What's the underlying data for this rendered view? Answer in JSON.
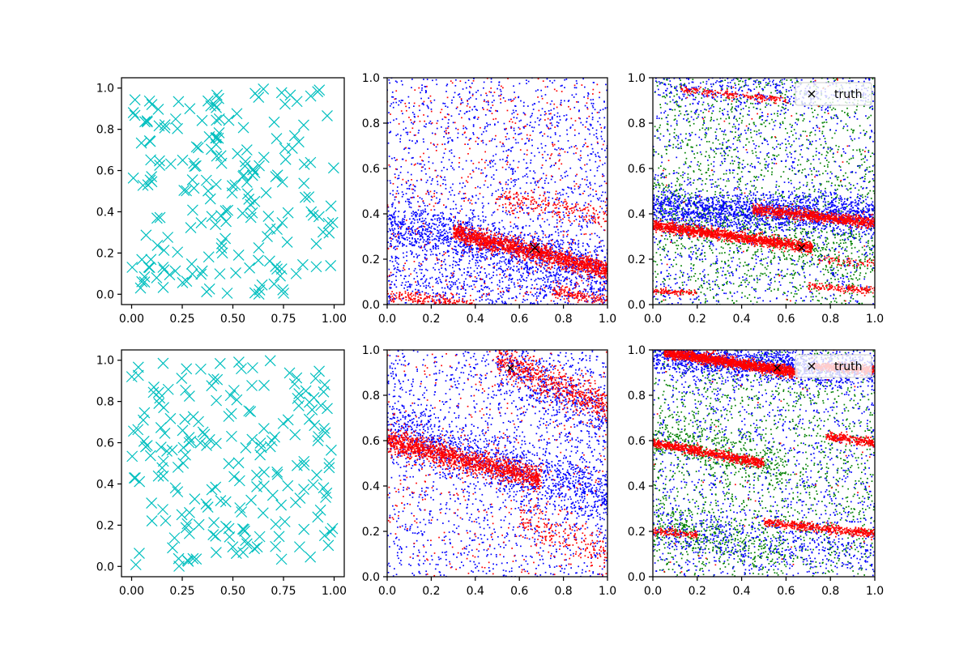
{
  "figure": {
    "background": "#ffffff"
  },
  "colors": {
    "cyan": "#00bfbf",
    "red": "#ff0000",
    "blue": "#0000ff",
    "green": "#008000",
    "black": "#000000"
  },
  "chart_data": [
    {
      "id": "r1c1",
      "type": "scatter",
      "marker": "x-large",
      "color": "#00bfbf",
      "xlim": [
        -0.05,
        1.05
      ],
      "ylim": [
        -0.05,
        1.05
      ],
      "xticks": [
        "0.00",
        "0.25",
        "0.50",
        "0.75",
        "1.00"
      ],
      "yticks": [
        "0.0",
        "0.2",
        "0.4",
        "0.6",
        "0.8",
        "1.0"
      ],
      "xtick_values": [
        0,
        0.25,
        0.5,
        0.75,
        1.0
      ],
      "ytick_values": [
        0,
        0.2,
        0.4,
        0.6,
        0.8,
        1.0
      ],
      "n_points": 200,
      "seed": 11,
      "distribution": "uniform"
    },
    {
      "id": "r1c2",
      "type": "scatter",
      "marker": "dot",
      "xlim": [
        0,
        1
      ],
      "ylim": [
        0,
        1
      ],
      "xticks": [
        "0.0",
        "0.2",
        "0.4",
        "0.6",
        "0.8",
        "1.0"
      ],
      "yticks": [
        "0.0",
        "0.2",
        "0.4",
        "0.6",
        "0.8",
        "1.0"
      ],
      "xtick_values": [
        0,
        0.2,
        0.4,
        0.6,
        0.8,
        1.0
      ],
      "ytick_values": [
        0,
        0.2,
        0.4,
        0.6,
        0.8,
        1.0
      ],
      "truth": {
        "x": 0.67,
        "y": 0.25,
        "size": "large"
      },
      "series": [
        {
          "color": "#0000ff",
          "seed": 21,
          "uniform": 1600,
          "bands": [
            {
              "x0": 0,
              "y0": 0.36,
              "x1": 1,
              "y1": 0.15,
              "n": 1300,
              "spread": 0.06
            },
            {
              "x0": 0,
              "y0": 0.12,
              "x1": 1,
              "y1": 0.04,
              "n": 400,
              "spread": 0.06
            }
          ]
        },
        {
          "color": "#ff0000",
          "seed": 22,
          "uniform": 500,
          "bands": [
            {
              "x0": 0.3,
              "y0": 0.32,
              "x1": 1,
              "y1": 0.15,
              "n": 1600,
              "spread": 0.02
            },
            {
              "x0": 0,
              "y0": 0.04,
              "x1": 0.4,
              "y1": 0.0,
              "n": 200,
              "spread": 0.015
            },
            {
              "x0": 0.75,
              "y0": 0.06,
              "x1": 1,
              "y1": 0.02,
              "n": 150,
              "spread": 0.015
            },
            {
              "x0": 0.5,
              "y0": 0.47,
              "x1": 1,
              "y1": 0.38,
              "n": 200,
              "spread": 0.025
            }
          ]
        }
      ]
    },
    {
      "id": "r1c3",
      "type": "scatter",
      "marker": "dot",
      "xlim": [
        0,
        1
      ],
      "ylim": [
        0,
        1
      ],
      "xticks": [
        "0.0",
        "0.2",
        "0.4",
        "0.6",
        "0.8",
        "1.0"
      ],
      "yticks": [
        "0.0",
        "0.2",
        "0.4",
        "0.6",
        "0.8",
        "1.0"
      ],
      "xtick_values": [
        0,
        0.2,
        0.4,
        0.6,
        0.8,
        1.0
      ],
      "ytick_values": [
        0,
        0.2,
        0.4,
        0.6,
        0.8,
        1.0
      ],
      "truth": {
        "x": 0.67,
        "y": 0.25,
        "size": "small"
      },
      "legend": {
        "label": "truth",
        "placement": "upper right"
      },
      "series": [
        {
          "color": "#008000",
          "seed": 31,
          "uniform": 1700,
          "bands": [
            {
              "x0": 0,
              "y0": 0.42,
              "x1": 1,
              "y1": 0.2,
              "n": 500,
              "spread": 0.07
            }
          ]
        },
        {
          "color": "#0000ff",
          "seed": 32,
          "uniform": 1200,
          "bands": [
            {
              "x0": 0,
              "y0": 0.42,
              "x1": 1,
              "y1": 0.4,
              "n": 1600,
              "spread": 0.04
            },
            {
              "x0": 0,
              "y0": 0.96,
              "x1": 1,
              "y1": 0.92,
              "n": 300,
              "spread": 0.04
            }
          ]
        },
        {
          "color": "#ff0000",
          "seed": 33,
          "uniform": 60,
          "bands": [
            {
              "x0": 0,
              "y0": 0.35,
              "x1": 0.72,
              "y1": 0.25,
              "n": 1400,
              "spread": 0.012
            },
            {
              "x0": 0.45,
              "y0": 0.42,
              "x1": 1,
              "y1": 0.36,
              "n": 900,
              "spread": 0.012
            },
            {
              "x0": 0.12,
              "y0": 0.95,
              "x1": 0.6,
              "y1": 0.9,
              "n": 200,
              "spread": 0.008
            },
            {
              "x0": 0,
              "y0": 0.06,
              "x1": 0.2,
              "y1": 0.05,
              "n": 100,
              "spread": 0.006
            },
            {
              "x0": 0.7,
              "y0": 0.08,
              "x1": 1,
              "y1": 0.06,
              "n": 150,
              "spread": 0.008
            },
            {
              "x0": 0.75,
              "y0": 0.2,
              "x1": 1,
              "y1": 0.18,
              "n": 60,
              "spread": 0.01
            }
          ]
        }
      ]
    },
    {
      "id": "r2c1",
      "type": "scatter",
      "marker": "x-large",
      "color": "#00bfbf",
      "xlim": [
        -0.05,
        1.05
      ],
      "ylim": [
        -0.05,
        1.05
      ],
      "xticks": [
        "0.00",
        "0.25",
        "0.50",
        "0.75",
        "1.00"
      ],
      "yticks": [
        "0.0",
        "0.2",
        "0.4",
        "0.6",
        "0.8",
        "1.0"
      ],
      "xtick_values": [
        0,
        0.25,
        0.5,
        0.75,
        1.0
      ],
      "ytick_values": [
        0,
        0.2,
        0.4,
        0.6,
        0.8,
        1.0
      ],
      "n_points": 200,
      "seed": 41,
      "distribution": "uniform"
    },
    {
      "id": "r2c2",
      "type": "scatter",
      "marker": "dot",
      "xlim": [
        0,
        1
      ],
      "ylim": [
        0,
        1
      ],
      "xticks": [
        "0.0",
        "0.2",
        "0.4",
        "0.6",
        "0.8",
        "1.0"
      ],
      "yticks": [
        "0.0",
        "0.2",
        "0.4",
        "0.6",
        "0.8",
        "1.0"
      ],
      "xtick_values": [
        0,
        0.2,
        0.4,
        0.6,
        0.8,
        1.0
      ],
      "ytick_values": [
        0,
        0.2,
        0.4,
        0.6,
        0.8,
        1.0
      ],
      "truth": {
        "x": 0.56,
        "y": 0.92,
        "size": "small"
      },
      "series": [
        {
          "color": "#0000ff",
          "seed": 51,
          "uniform": 1500,
          "bands": [
            {
              "x0": 0,
              "y0": 0.65,
              "x1": 1,
              "y1": 0.35,
              "n": 1200,
              "spread": 0.07
            },
            {
              "x0": 0.5,
              "y0": 0.95,
              "x1": 1,
              "y1": 0.7,
              "n": 500,
              "spread": 0.07
            }
          ]
        },
        {
          "color": "#ff0000",
          "seed": 52,
          "uniform": 400,
          "bands": [
            {
              "x0": 0,
              "y0": 0.6,
              "x1": 0.7,
              "y1": 0.43,
              "n": 1500,
              "spread": 0.025
            },
            {
              "x0": 0.5,
              "y0": 0.96,
              "x1": 1,
              "y1": 0.75,
              "n": 600,
              "spread": 0.04
            },
            {
              "x0": 0.6,
              "y0": 0.25,
              "x1": 1,
              "y1": 0.1,
              "n": 200,
              "spread": 0.05
            }
          ]
        }
      ]
    },
    {
      "id": "r2c3",
      "type": "scatter",
      "marker": "dot",
      "xlim": [
        0,
        1
      ],
      "ylim": [
        0,
        1
      ],
      "xticks": [
        "0.0",
        "0.2",
        "0.4",
        "0.6",
        "0.8",
        "1.0"
      ],
      "yticks": [
        "0.0",
        "0.2",
        "0.4",
        "0.6",
        "0.8",
        "1.0"
      ],
      "xtick_values": [
        0,
        0.2,
        0.4,
        0.6,
        0.8,
        1.0
      ],
      "ytick_values": [
        0,
        0.2,
        0.4,
        0.6,
        0.8,
        1.0
      ],
      "truth": {
        "x": 0.56,
        "y": 0.92,
        "size": "small"
      },
      "legend": {
        "label": "truth",
        "placement": "upper right"
      },
      "series": [
        {
          "color": "#008000",
          "seed": 61,
          "uniform": 1600,
          "bands": [
            {
              "x0": 0,
              "y0": 0.62,
              "x1": 0.6,
              "y1": 0.48,
              "n": 400,
              "spread": 0.05
            },
            {
              "x0": 0,
              "y0": 0.22,
              "x1": 0.6,
              "y1": 0.12,
              "n": 300,
              "spread": 0.05
            }
          ]
        },
        {
          "color": "#0000ff",
          "seed": 62,
          "uniform": 1300,
          "bands": [
            {
              "x0": 0,
              "y0": 0.98,
              "x1": 1,
              "y1": 0.9,
              "n": 1500,
              "spread": 0.04
            },
            {
              "x0": 0,
              "y0": 0.2,
              "x1": 1,
              "y1": 0.1,
              "n": 300,
              "spread": 0.05
            }
          ]
        },
        {
          "color": "#ff0000",
          "seed": 63,
          "uniform": 60,
          "bands": [
            {
              "x0": 0.05,
              "y0": 0.99,
              "x1": 0.65,
              "y1": 0.9,
              "n": 1700,
              "spread": 0.012
            },
            {
              "x0": 0.72,
              "y0": 0.93,
              "x1": 1,
              "y1": 0.91,
              "n": 400,
              "spread": 0.01
            },
            {
              "x0": 0,
              "y0": 0.59,
              "x1": 0.5,
              "y1": 0.5,
              "n": 800,
              "spread": 0.01
            },
            {
              "x0": 0.78,
              "y0": 0.62,
              "x1": 1,
              "y1": 0.59,
              "n": 250,
              "spread": 0.01
            },
            {
              "x0": 0,
              "y0": 0.2,
              "x1": 0.2,
              "y1": 0.18,
              "n": 120,
              "spread": 0.008
            },
            {
              "x0": 0.5,
              "y0": 0.24,
              "x1": 1,
              "y1": 0.19,
              "n": 500,
              "spread": 0.01
            }
          ]
        }
      ]
    }
  ]
}
